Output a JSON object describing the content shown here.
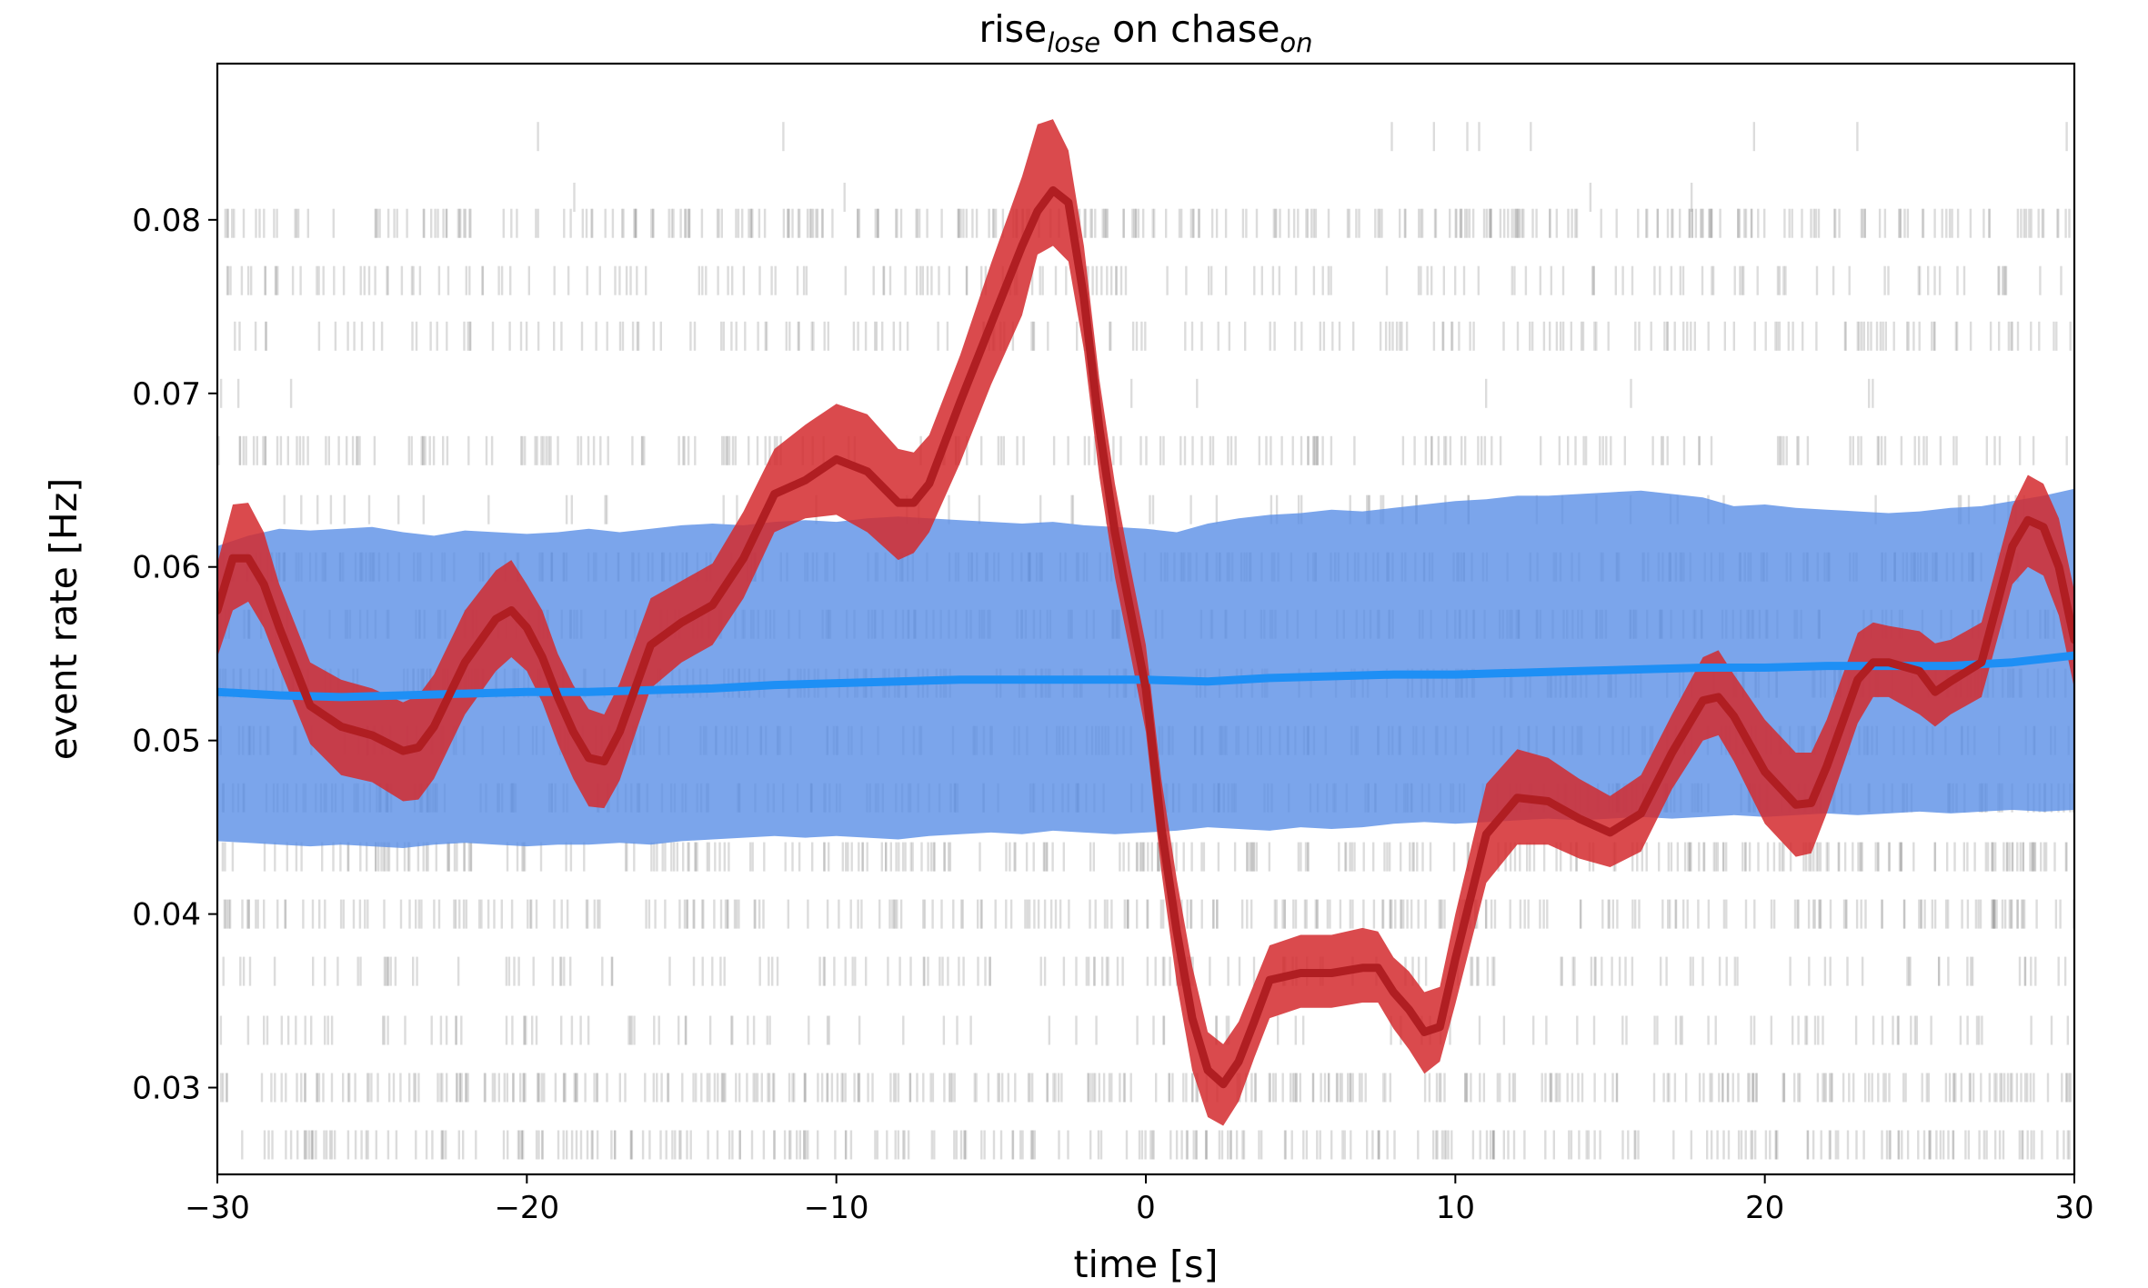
{
  "chart_data": {
    "type": "line",
    "title": {
      "main": "rise",
      "main_sub": "lose",
      "mid": " on chase",
      "mid_sub": "on"
    },
    "xlabel": "time [s]",
    "ylabel": "event rate [Hz]",
    "xlim": [
      -30,
      30
    ],
    "ylim": [
      0.025,
      0.089
    ],
    "grid": false,
    "x_ticks": [
      -30,
      -20,
      -10,
      0,
      10,
      20,
      30
    ],
    "x_tick_labels": [
      "−30",
      "−20",
      "−10",
      "0",
      "10",
      "20",
      "30"
    ],
    "y_ticks": [
      0.03,
      0.04,
      0.05,
      0.06,
      0.07,
      0.08
    ],
    "y_tick_labels": [
      "0.03",
      "0.04",
      "0.05",
      "0.06",
      "0.07",
      "0.08"
    ],
    "colors": {
      "event_line": "#b01e22",
      "event_band": "#d42a2e",
      "baseline_line": "#1e8ff5",
      "baseline_band": "#5a8ee6",
      "raster": "#9a9a9a"
    },
    "series": [
      {
        "x": [
          -30,
          -29.5,
          -29,
          -28.5,
          -28,
          -27,
          -26,
          -25,
          -24,
          -23.5,
          -23,
          -22,
          -21,
          -20.5,
          -20,
          -19.5,
          -19,
          -18.5,
          -18,
          -17.5,
          -17,
          -16,
          -15,
          -14,
          -13,
          -12,
          -11,
          -10,
          -9,
          -8,
          -7.5,
          -7,
          -6,
          -5,
          -4,
          -3.5,
          -3,
          -2.5,
          -2,
          -1.5,
          -1,
          -0.5,
          0,
          0.5,
          1,
          1.5,
          2,
          2.5,
          3,
          3.5,
          4,
          5,
          6,
          7,
          7.5,
          8,
          8.5,
          9,
          9.5,
          10,
          11,
          12,
          13,
          14,
          15,
          16,
          17,
          18,
          18.5,
          19,
          20,
          21,
          21.5,
          22,
          23,
          23.5,
          24,
          25,
          25.5,
          26,
          27,
          28,
          28.5,
          29,
          29.5,
          30
        ],
        "values": [
          0.0575,
          0.0605,
          0.0605,
          0.059,
          0.0565,
          0.052,
          0.0508,
          0.0503,
          0.0494,
          0.0496,
          0.0508,
          0.0545,
          0.057,
          0.0575,
          0.0565,
          0.0548,
          0.0525,
          0.0505,
          0.049,
          0.0488,
          0.0505,
          0.0555,
          0.0568,
          0.0578,
          0.0605,
          0.0642,
          0.065,
          0.0662,
          0.0655,
          0.0637,
          0.0637,
          0.0648,
          0.0695,
          0.074,
          0.0785,
          0.0805,
          0.0817,
          0.081,
          0.0755,
          0.068,
          0.062,
          0.0575,
          0.053,
          0.045,
          0.039,
          0.034,
          0.031,
          0.0302,
          0.0315,
          0.0338,
          0.0362,
          0.0366,
          0.0366,
          0.0369,
          0.0369,
          0.0355,
          0.0345,
          0.0332,
          0.0335,
          0.0374,
          0.0446,
          0.0467,
          0.0465,
          0.0455,
          0.0447,
          0.0458,
          0.0493,
          0.0523,
          0.0525,
          0.0514,
          0.0482,
          0.0463,
          0.0464,
          0.0485,
          0.0535,
          0.0545,
          0.0545,
          0.054,
          0.0528,
          0.0534,
          0.0545,
          0.0612,
          0.0627,
          0.0623,
          0.06,
          0.0558
        ]
      },
      {
        "x": [
          -30,
          -28,
          -26,
          -24,
          -22,
          -20,
          -18,
          -16,
          -14,
          -12,
          -10,
          -8,
          -6,
          -4,
          -2,
          0,
          2,
          4,
          6,
          8,
          10,
          12,
          14,
          16,
          18,
          20,
          22,
          24,
          26,
          28,
          30
        ],
        "values": [
          0.0528,
          0.0526,
          0.0525,
          0.0526,
          0.0527,
          0.0528,
          0.0528,
          0.0529,
          0.053,
          0.0532,
          0.0533,
          0.0534,
          0.0535,
          0.0535,
          0.0535,
          0.0535,
          0.0534,
          0.0536,
          0.0537,
          0.0538,
          0.0538,
          0.0539,
          0.054,
          0.0541,
          0.0542,
          0.0542,
          0.0543,
          0.0543,
          0.0543,
          0.0545,
          0.0549
        ]
      }
    ],
    "bands": [
      {
        "x": [
          -30,
          -29.5,
          -29,
          -28.5,
          -28,
          -27,
          -26,
          -25,
          -24,
          -23.5,
          -23,
          -22,
          -21,
          -20.5,
          -20,
          -19.5,
          -19,
          -18.5,
          -18,
          -17.5,
          -17,
          -16,
          -15,
          -14,
          -13,
          -12,
          -11,
          -10,
          -9,
          -8,
          -7.5,
          -7,
          -6,
          -5,
          -4,
          -3.5,
          -3,
          -2.5,
          -2,
          -1.5,
          -1,
          -0.5,
          0,
          0.5,
          1,
          1.5,
          2,
          2.5,
          3,
          3.5,
          4,
          5,
          6,
          7,
          7.5,
          8,
          8.5,
          9,
          9.5,
          10,
          11,
          12,
          13,
          14,
          15,
          16,
          17,
          18,
          18.5,
          19,
          20,
          21,
          21.5,
          22,
          23,
          23.5,
          24,
          25,
          25.5,
          26,
          27,
          28,
          28.5,
          29,
          29.5,
          30
        ],
        "lower": [
          0.0548,
          0.0575,
          0.058,
          0.0565,
          0.0542,
          0.0498,
          0.048,
          0.0476,
          0.0465,
          0.0466,
          0.0478,
          0.0515,
          0.054,
          0.0548,
          0.054,
          0.0522,
          0.0498,
          0.0478,
          0.0462,
          0.0461,
          0.0477,
          0.053,
          0.0545,
          0.0555,
          0.0582,
          0.062,
          0.0628,
          0.063,
          0.062,
          0.0604,
          0.0608,
          0.062,
          0.066,
          0.0705,
          0.0745,
          0.078,
          0.0785,
          0.0776,
          0.0725,
          0.0652,
          0.0594,
          0.055,
          0.0505,
          0.0425,
          0.036,
          0.031,
          0.0283,
          0.0278,
          0.0292,
          0.0317,
          0.034,
          0.0346,
          0.0346,
          0.0349,
          0.0349,
          0.0334,
          0.0322,
          0.0308,
          0.0315,
          0.0348,
          0.0418,
          0.044,
          0.044,
          0.0432,
          0.0427,
          0.0436,
          0.0472,
          0.05,
          0.0503,
          0.0488,
          0.0452,
          0.0433,
          0.0435,
          0.0458,
          0.051,
          0.0525,
          0.0525,
          0.0515,
          0.0508,
          0.0515,
          0.0525,
          0.059,
          0.06,
          0.0595,
          0.0572,
          0.053
        ],
        "upper": [
          0.0602,
          0.0636,
          0.0637,
          0.062,
          0.059,
          0.0545,
          0.0535,
          0.053,
          0.0522,
          0.0526,
          0.0538,
          0.0575,
          0.0598,
          0.0604,
          0.059,
          0.0575,
          0.055,
          0.0532,
          0.0518,
          0.0515,
          0.0533,
          0.0582,
          0.0592,
          0.0602,
          0.0632,
          0.0668,
          0.0682,
          0.0694,
          0.0688,
          0.0668,
          0.0666,
          0.0676,
          0.0722,
          0.0775,
          0.0825,
          0.0855,
          0.0858,
          0.084,
          0.0785,
          0.0708,
          0.0648,
          0.06,
          0.0555,
          0.0478,
          0.042,
          0.037,
          0.0332,
          0.0325,
          0.0338,
          0.036,
          0.0382,
          0.0388,
          0.0388,
          0.0392,
          0.039,
          0.0375,
          0.0367,
          0.0355,
          0.0358,
          0.04,
          0.0475,
          0.0495,
          0.049,
          0.0478,
          0.0468,
          0.048,
          0.0515,
          0.0548,
          0.0552,
          0.0538,
          0.0512,
          0.0493,
          0.0493,
          0.0512,
          0.0562,
          0.0568,
          0.0566,
          0.0563,
          0.0556,
          0.0558,
          0.0568,
          0.0635,
          0.0653,
          0.0648,
          0.0628,
          0.0586
        ]
      },
      {
        "x": [
          -30,
          -29,
          -28,
          -27,
          -26,
          -25,
          -24,
          -23,
          -22,
          -21,
          -20,
          -19,
          -18,
          -17,
          -16,
          -15,
          -14,
          -13,
          -12,
          -11,
          -10,
          -9,
          -8,
          -7,
          -6,
          -5,
          -4,
          -3,
          -2,
          -1,
          0,
          1,
          2,
          3,
          4,
          5,
          6,
          7,
          8,
          9,
          10,
          11,
          12,
          13,
          14,
          15,
          16,
          17,
          18,
          19,
          20,
          21,
          22,
          23,
          24,
          25,
          26,
          27,
          28,
          29,
          30
        ],
        "lower": [
          0.0442,
          0.0441,
          0.044,
          0.0439,
          0.044,
          0.0439,
          0.0438,
          0.044,
          0.0441,
          0.044,
          0.0439,
          0.044,
          0.044,
          0.0441,
          0.044,
          0.0442,
          0.0443,
          0.0444,
          0.0445,
          0.0444,
          0.0445,
          0.0444,
          0.0443,
          0.0445,
          0.0446,
          0.0447,
          0.0446,
          0.0448,
          0.0447,
          0.0446,
          0.0447,
          0.0448,
          0.045,
          0.0449,
          0.0448,
          0.045,
          0.0449,
          0.045,
          0.0452,
          0.0453,
          0.0452,
          0.0453,
          0.0454,
          0.0455,
          0.0454,
          0.0455,
          0.0456,
          0.0455,
          0.0456,
          0.0457,
          0.0456,
          0.0457,
          0.0458,
          0.0457,
          0.0458,
          0.0459,
          0.0458,
          0.0459,
          0.046,
          0.0459,
          0.046
        ],
        "upper": [
          0.0612,
          0.0618,
          0.0622,
          0.0621,
          0.0622,
          0.0623,
          0.062,
          0.0618,
          0.0621,
          0.062,
          0.0619,
          0.062,
          0.0622,
          0.062,
          0.0622,
          0.0624,
          0.0625,
          0.0624,
          0.0626,
          0.0627,
          0.0626,
          0.0628,
          0.0629,
          0.0628,
          0.0627,
          0.0626,
          0.0625,
          0.0626,
          0.0624,
          0.0623,
          0.0622,
          0.062,
          0.0625,
          0.0628,
          0.063,
          0.0631,
          0.0633,
          0.0632,
          0.0634,
          0.0636,
          0.0638,
          0.0639,
          0.0641,
          0.0641,
          0.0642,
          0.0643,
          0.0644,
          0.0642,
          0.064,
          0.0635,
          0.0636,
          0.0634,
          0.0633,
          0.0632,
          0.0631,
          0.0632,
          0.0634,
          0.0635,
          0.0638,
          0.0641,
          0.0645
        ]
      }
    ],
    "raster_rows": [
      0.0848,
      0.0813,
      0.0798,
      0.0765,
      0.0733,
      0.07,
      0.0667,
      0.0633,
      0.06,
      0.0567,
      0.0533,
      0.05,
      0.0467,
      0.0433,
      0.04,
      0.0367,
      0.0333,
      0.03,
      0.0267
    ],
    "raster_counts": [
      10,
      4,
      320,
      170,
      190,
      10,
      200,
      60,
      300,
      240,
      260,
      230,
      280,
      300,
      280,
      160,
      120,
      340,
      280
    ]
  }
}
